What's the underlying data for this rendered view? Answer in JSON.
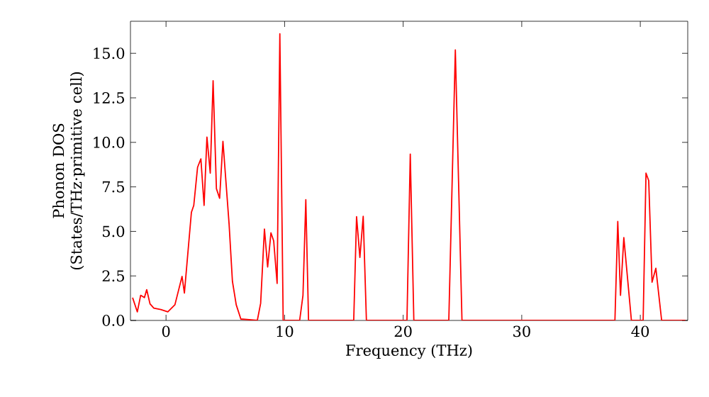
{
  "chart_data": {
    "type": "line",
    "xlabel": "Frequency (THz)",
    "ylabel": "Phonon DOS (States/THz·primitive cell)",
    "xlim": [
      -3,
      44
    ],
    "ylim": [
      0,
      16.8
    ],
    "xticks": [
      0,
      10,
      20,
      30,
      40
    ],
    "yticks": [
      {
        "value": 0,
        "label": "0.0"
      },
      {
        "value": 2.5,
        "label": "2.5"
      },
      {
        "value": 5,
        "label": "5.0"
      },
      {
        "value": 7.5,
        "label": "7.5"
      },
      {
        "value": 10,
        "label": "10.0"
      },
      {
        "value": 12.5,
        "label": "12.5"
      },
      {
        "value": 15,
        "label": "15.0"
      }
    ],
    "grid": false,
    "marker": "none",
    "line_style": "solid",
    "series": [
      {
        "color": "#ff0000",
        "x": [
          -2.82,
          -2.42,
          -2.14,
          -1.82,
          -1.63,
          -1.35,
          -1.03,
          -0.44,
          0.15,
          0.75,
          1.35,
          1.55,
          2.14,
          2.34,
          2.66,
          2.94,
          3.21,
          3.45,
          3.73,
          3.97,
          4.25,
          4.52,
          4.8,
          5.32,
          5.6,
          5.92,
          6.31,
          7.7,
          7.98,
          8.3,
          8.57,
          8.85,
          9.08,
          9.37,
          9.6,
          9.88,
          11.27,
          11.55,
          11.79,
          12.02,
          15.83,
          16.07,
          16.35,
          16.63,
          16.9,
          20.32,
          20.6,
          20.9,
          23.85,
          24.4,
          24.96,
          37.86,
          38.1,
          38.33,
          38.61,
          39.25,
          40.24,
          40.48,
          40.71,
          40.99,
          41.31,
          41.8,
          43.8
        ],
        "values": [
          1.28,
          0.48,
          1.41,
          1.28,
          1.73,
          0.93,
          0.69,
          0.61,
          0.48,
          0.88,
          2.47,
          1.54,
          6.07,
          6.46,
          8.6,
          9.07,
          6.46,
          10.3,
          8.27,
          13.46,
          7.4,
          6.86,
          10.06,
          5.4,
          2.2,
          0.88,
          0.08,
          0,
          0.96,
          5.13,
          3.0,
          4.92,
          4.47,
          2.08,
          16.1,
          0,
          0,
          1.41,
          6.78,
          0,
          0,
          5.83,
          3.54,
          5.85,
          0,
          0,
          9.34,
          0,
          0,
          15.19,
          0,
          0,
          5.56,
          1.41,
          4.65,
          0,
          0,
          8.27,
          7.85,
          2.15,
          2.93,
          0,
          0
        ]
      }
    ]
  }
}
